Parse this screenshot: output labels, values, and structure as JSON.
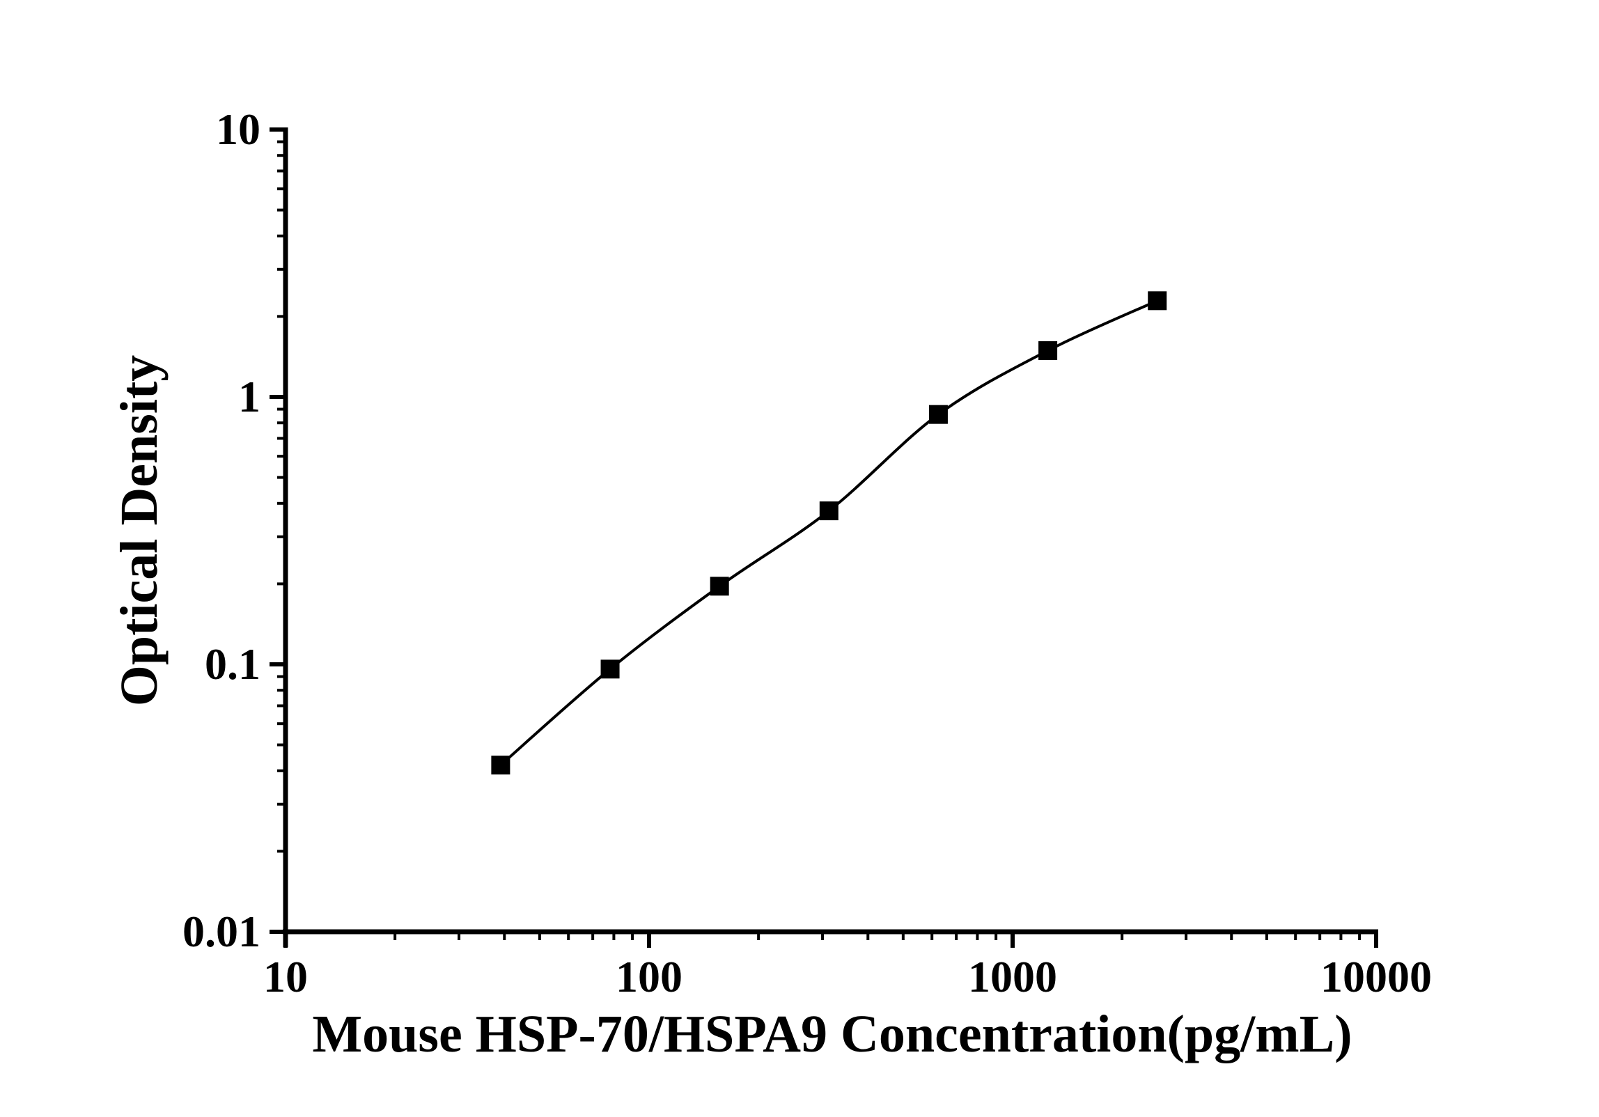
{
  "figure": {
    "background": "#ffffff",
    "ink_color": "#000000"
  },
  "chart_data": {
    "type": "scatter",
    "subtype": "log-log standard curve with connecting smooth line",
    "title": "",
    "xlabel": "Mouse HSP-70/HSPA9 Concentration(pg/mL)",
    "ylabel": "Optical Density",
    "x_scale": "log",
    "y_scale": "log",
    "xlim": [
      10,
      10000
    ],
    "ylim": [
      0.01,
      10
    ],
    "x_tick_values": [
      10,
      100,
      1000,
      10000
    ],
    "x_tick_labels": [
      "10",
      "100",
      "1000",
      "10000"
    ],
    "y_tick_values": [
      10,
      1,
      0.1,
      0.01
    ],
    "y_tick_labels": [
      "10",
      "1",
      "0.1",
      "0.01"
    ],
    "minor_ticks": "log multiples 2-9 per decade, both axes",
    "grid": false,
    "legend": "none",
    "marker": "filled-square",
    "marker_color": "#000000",
    "line_color": "#000000",
    "series": [
      {
        "name": "standard-curve",
        "points": [
          {
            "x": 39.06,
            "y": 0.042
          },
          {
            "x": 78.13,
            "y": 0.096
          },
          {
            "x": 156.25,
            "y": 0.196
          },
          {
            "x": 312.5,
            "y": 0.375
          },
          {
            "x": 625,
            "y": 0.86
          },
          {
            "x": 1250,
            "y": 1.49
          },
          {
            "x": 2500,
            "y": 2.29
          }
        ]
      }
    ]
  }
}
